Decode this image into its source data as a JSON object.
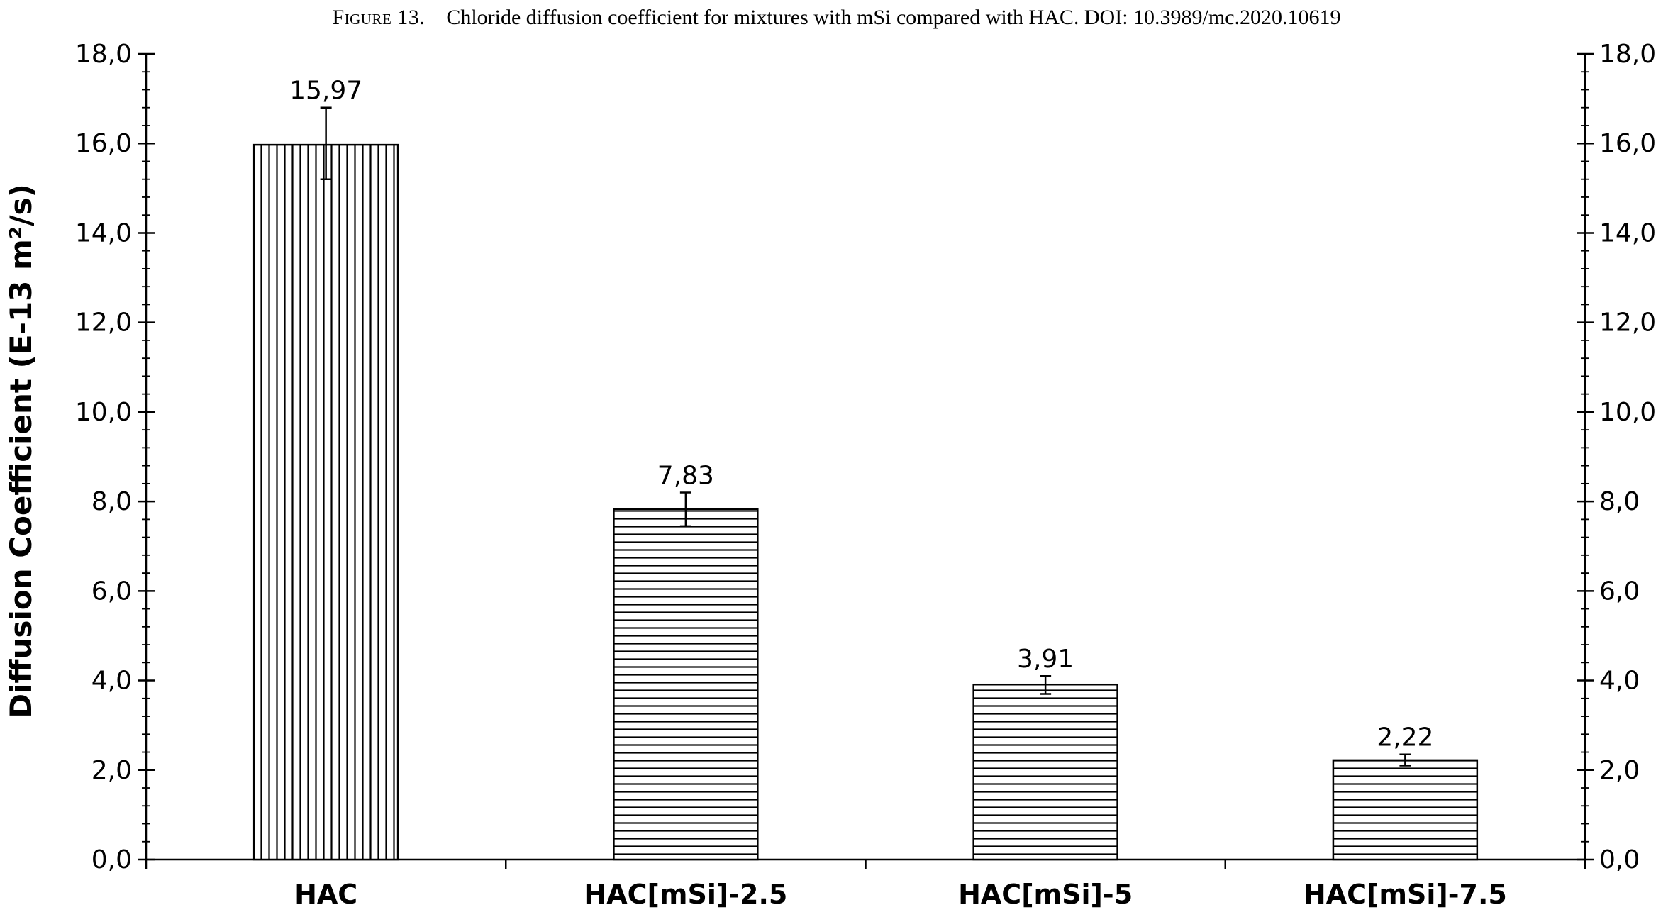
{
  "caption": {
    "figure_label": "Figure 13.",
    "text": "Chloride diffusion coefficient for mixtures with mSi compared with HAC. DOI: 10.3989/mc.2020.10619"
  },
  "chart_data": {
    "type": "bar",
    "title": "",
    "xlabel": "",
    "ylabel": "Diffusion Coefficient (E-13 m²/s)",
    "ylim": [
      0,
      18
    ],
    "yticks": [
      "0,0",
      "2,0",
      "4,0",
      "6,0",
      "8,0",
      "10,0",
      "12,0",
      "14,0",
      "16,0",
      "18,0"
    ],
    "secondary_axis": true,
    "grid": false,
    "legend": "none",
    "categories": [
      "HAC",
      "HAC[mSi]-2.5",
      "HAC[mSi]-5",
      "HAC[mSi]-7.5"
    ],
    "values": [
      15.97,
      7.83,
      3.91,
      2.22
    ],
    "value_labels": [
      "15,97",
      "7,83",
      "3,91",
      "2,22"
    ],
    "error_bars": [
      {
        "low": 15.2,
        "high": 16.8
      },
      {
        "low": 7.45,
        "high": 8.2
      },
      {
        "low": 3.7,
        "high": 4.1
      },
      {
        "low": 2.1,
        "high": 2.35
      }
    ],
    "patterns": [
      "vertical-stripes",
      "horizontal-stripes",
      "horizontal-stripes",
      "horizontal-stripes"
    ],
    "colors": {
      "bar_fill": "#ffffff",
      "bar_stroke": "#000000",
      "axis": "#000000"
    }
  }
}
